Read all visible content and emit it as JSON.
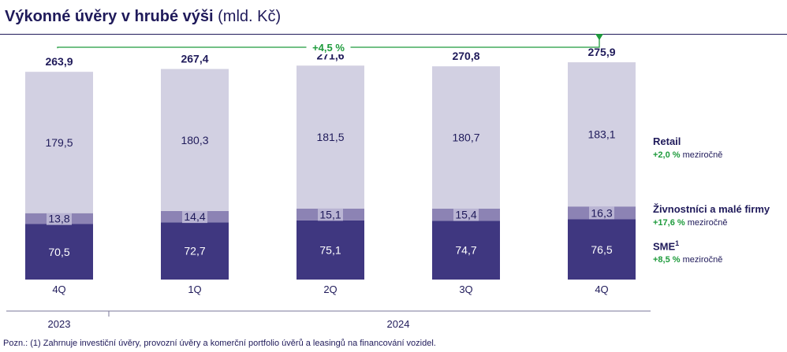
{
  "header": {
    "title_bold": "Výkonné úvěry v hrubé výši",
    "title_unit": "(mld. Kč)"
  },
  "chart_data": {
    "type": "bar",
    "stacked": true,
    "categories": [
      "4Q",
      "1Q",
      "2Q",
      "3Q",
      "4Q"
    ],
    "years": [
      {
        "label": "2023",
        "span": [
          0,
          0
        ]
      },
      {
        "label": "2024",
        "span": [
          1,
          4
        ]
      }
    ],
    "series": [
      {
        "name": "SME",
        "values": [
          70.5,
          72.7,
          75.1,
          74.7,
          76.5
        ],
        "labels": [
          "70,5",
          "72,7",
          "75,1",
          "74,7",
          "76,5"
        ],
        "color": "#3f3780"
      },
      {
        "name": "Živnostníci a malé firmy",
        "values": [
          13.8,
          14.4,
          15.1,
          15.4,
          16.3
        ],
        "labels": [
          "13,8",
          "14,4",
          "15,1",
          "15,4",
          "16,3"
        ],
        "color": "#8c83b4"
      },
      {
        "name": "Retail",
        "values": [
          179.5,
          180.3,
          181.5,
          180.7,
          183.1
        ],
        "labels": [
          "179,5",
          "180,3",
          "181,5",
          "180,7",
          "183,1"
        ],
        "color": "#d2d0e2"
      }
    ],
    "totals": [
      263.9,
      267.4,
      271.6,
      270.8,
      275.9
    ],
    "total_labels": [
      "263,9",
      "267,4",
      "271,6",
      "270,8",
      "275,9"
    ],
    "growth_annotation": "+4,5 %",
    "accent_color": "#1e9b3c",
    "ylim": [
      0,
      300
    ]
  },
  "legend": {
    "retail": {
      "name": "Retail",
      "change": "+2,0 %",
      "suffix": "meziročně"
    },
    "small": {
      "name": "Živnostníci a malé firmy",
      "change": "+17,6 %",
      "suffix": "meziročně"
    },
    "sme": {
      "name": "SME",
      "sup": "1",
      "change": "+8,5 %",
      "suffix": "meziročně"
    }
  },
  "footnote": "Pozn.: (1) Zahrnuje investiční úvěry, provozní úvěry a komerční portfolio úvěrů a leasingů na financování vozidel."
}
